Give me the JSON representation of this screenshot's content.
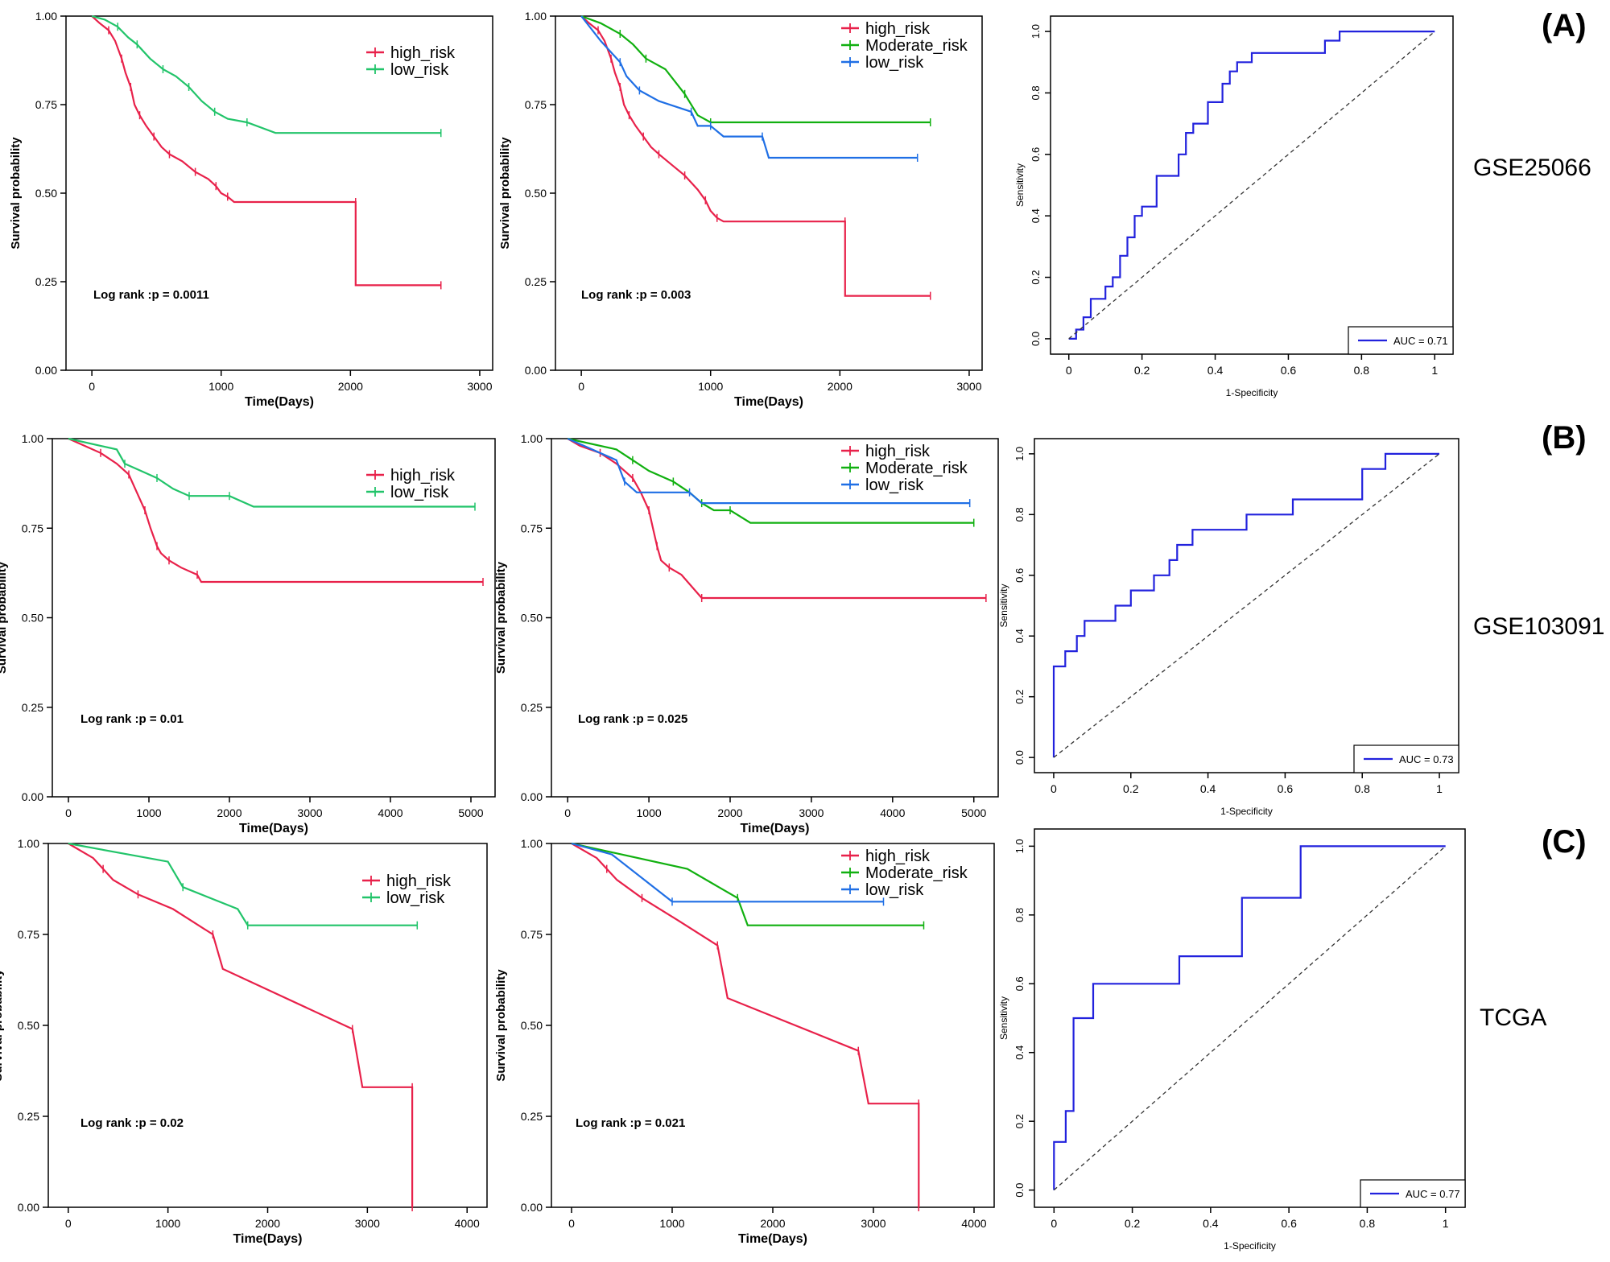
{
  "colors": {
    "high_risk": "#e8214a",
    "low_risk_2grp": "#22c46a",
    "moderate_risk": "#11b010",
    "low_risk_3grp": "#1f6fe5",
    "roc": "#2222dd",
    "axis": "#000000"
  },
  "rows": [
    {
      "letter": "(A)",
      "dataset": "GSE25066"
    },
    {
      "letter": "(B)",
      "dataset": "GSE103091"
    },
    {
      "letter": "(C)",
      "dataset": "TCGA"
    }
  ],
  "chart_data": [
    {
      "type": "line",
      "subtype": "kaplan-meier",
      "title": "",
      "xlabel": "Time(Days)",
      "ylabel": "Survival probability",
      "xlim": [
        -200,
        3100
      ],
      "xticks": [
        0,
        1000,
        2000,
        3000
      ],
      "ylim": [
        0,
        1
      ],
      "yticks": [
        0.0,
        0.25,
        0.5,
        0.75,
        1.0
      ],
      "ytick_labels": [
        "0.00",
        "0.25",
        "0.50",
        "0.75",
        "1.00"
      ],
      "annotation": "Log rank :p = 0.0011",
      "series": [
        {
          "name": "high_risk",
          "color": "#e8214a",
          "x": [
            0,
            60,
            130,
            180,
            230,
            260,
            300,
            330,
            370,
            420,
            480,
            540,
            600,
            700,
            800,
            900,
            960,
            1000,
            1050,
            1100,
            2040,
            2040,
            2700
          ],
          "y": [
            1.0,
            0.98,
            0.96,
            0.93,
            0.88,
            0.84,
            0.8,
            0.75,
            0.72,
            0.69,
            0.66,
            0.63,
            0.61,
            0.59,
            0.56,
            0.54,
            0.52,
            0.5,
            0.49,
            0.475,
            0.475,
            0.24,
            0.24
          ]
        },
        {
          "name": "low_risk",
          "color": "#22c46a",
          "x": [
            0,
            100,
            200,
            280,
            350,
            450,
            550,
            650,
            750,
            850,
            950,
            1050,
            1200,
            1420,
            2700
          ],
          "y": [
            1.0,
            0.99,
            0.97,
            0.94,
            0.92,
            0.88,
            0.85,
            0.83,
            0.8,
            0.76,
            0.73,
            0.71,
            0.7,
            0.67,
            0.67
          ]
        }
      ]
    },
    {
      "type": "line",
      "subtype": "kaplan-meier",
      "title": "",
      "xlabel": "Time(Days)",
      "ylabel": "Survival probability",
      "xlim": [
        -200,
        3100
      ],
      "xticks": [
        0,
        1000,
        2000,
        3000
      ],
      "ylim": [
        0,
        1
      ],
      "yticks": [
        0.0,
        0.25,
        0.5,
        0.75,
        1.0
      ],
      "ytick_labels": [
        "0.00",
        "0.25",
        "0.50",
        "0.75",
        "1.00"
      ],
      "annotation": "Log rank :p = 0.003",
      "series": [
        {
          "name": "high_risk",
          "color": "#e8214a",
          "x": [
            0,
            60,
            130,
            180,
            230,
            260,
            300,
            330,
            370,
            420,
            480,
            540,
            600,
            700,
            800,
            900,
            960,
            1000,
            1050,
            1100,
            2040,
            2040,
            2700
          ],
          "y": [
            1.0,
            0.98,
            0.96,
            0.93,
            0.88,
            0.84,
            0.8,
            0.75,
            0.72,
            0.69,
            0.66,
            0.63,
            0.61,
            0.58,
            0.55,
            0.51,
            0.48,
            0.45,
            0.43,
            0.42,
            0.42,
            0.21,
            0.21
          ]
        },
        {
          "name": "Moderate_risk",
          "color": "#11b010",
          "x": [
            0,
            150,
            300,
            400,
            500,
            650,
            800,
            900,
            1000,
            2700
          ],
          "y": [
            1.0,
            0.98,
            0.95,
            0.92,
            0.88,
            0.85,
            0.78,
            0.72,
            0.7,
            0.7
          ]
        },
        {
          "name": "low_risk",
          "color": "#1f6fe5",
          "x": [
            0,
            150,
            300,
            350,
            450,
            600,
            850,
            900,
            1000,
            1100,
            1400,
            1450,
            2600
          ],
          "y": [
            1.0,
            0.93,
            0.87,
            0.83,
            0.79,
            0.76,
            0.73,
            0.69,
            0.69,
            0.66,
            0.66,
            0.6,
            0.6
          ]
        }
      ]
    },
    {
      "type": "line",
      "subtype": "roc",
      "title": "",
      "xlabel": "1-Specificity",
      "ylabel": "Sensitivity",
      "xlim": [
        -0.05,
        1.05
      ],
      "ylim": [
        -0.05,
        1.05
      ],
      "xticks": [
        0.0,
        0.2,
        0.4,
        0.6,
        0.8,
        1.0
      ],
      "yticks": [
        0.0,
        0.2,
        0.4,
        0.6,
        0.8,
        1.0
      ],
      "ytick_labels": [
        "0.0",
        "0.2",
        "0.4",
        "0.6",
        "0.8",
        "1.0"
      ],
      "legend": "AUC = 0.71",
      "series": [
        {
          "name": "ROC",
          "color": "#2222dd",
          "x": [
            0.0,
            0.02,
            0.02,
            0.04,
            0.04,
            0.06,
            0.06,
            0.1,
            0.1,
            0.12,
            0.12,
            0.14,
            0.14,
            0.16,
            0.16,
            0.18,
            0.18,
            0.2,
            0.2,
            0.24,
            0.24,
            0.3,
            0.3,
            0.32,
            0.32,
            0.34,
            0.34,
            0.38,
            0.38,
            0.42,
            0.42,
            0.44,
            0.44,
            0.46,
            0.46,
            0.5,
            0.5,
            0.7,
            0.7,
            0.74,
            0.74,
            0.84,
            0.84,
            1.0
          ],
          "y": [
            0.0,
            0.0,
            0.03,
            0.03,
            0.07,
            0.07,
            0.13,
            0.13,
            0.17,
            0.17,
            0.2,
            0.2,
            0.27,
            0.27,
            0.33,
            0.33,
            0.4,
            0.4,
            0.43,
            0.43,
            0.53,
            0.53,
            0.6,
            0.6,
            0.67,
            0.67,
            0.7,
            0.7,
            0.77,
            0.77,
            0.83,
            0.83,
            0.87,
            0.87,
            0.9,
            0.9,
            0.93,
            0.93,
            0.97,
            0.97,
            1.0,
            1.0,
            1.0,
            1.0
          ]
        },
        {
          "name": "reference",
          "color": "#333333",
          "x": [
            0,
            1
          ],
          "y": [
            0,
            1
          ]
        }
      ]
    },
    {
      "type": "line",
      "subtype": "kaplan-meier",
      "title": "",
      "xlabel": "Time(Days)",
      "ylabel": "Survival probability",
      "xlim": [
        -200,
        5300
      ],
      "xticks": [
        0,
        1000,
        2000,
        3000,
        4000,
        5000
      ],
      "ylim": [
        0,
        1
      ],
      "yticks": [
        0.0,
        0.25,
        0.5,
        0.75,
        1.0
      ],
      "ytick_labels": [
        "0.00",
        "0.25",
        "0.50",
        "0.75",
        "1.00"
      ],
      "annotation": "Log rank :p = 0.01",
      "series": [
        {
          "name": "high_risk",
          "color": "#e8214a",
          "x": [
            0,
            200,
            400,
            600,
            750,
            850,
            950,
            1020,
            1100,
            1150,
            1250,
            1400,
            1600,
            1650,
            5150
          ],
          "y": [
            1.0,
            0.98,
            0.96,
            0.93,
            0.9,
            0.85,
            0.8,
            0.75,
            0.7,
            0.68,
            0.66,
            0.64,
            0.62,
            0.6,
            0.6
          ]
        },
        {
          "name": "low_risk",
          "color": "#22c46a",
          "x": [
            0,
            600,
            700,
            900,
            1100,
            1300,
            1500,
            1700,
            2000,
            2300,
            5050
          ],
          "y": [
            1.0,
            0.97,
            0.93,
            0.91,
            0.89,
            0.86,
            0.84,
            0.84,
            0.84,
            0.81,
            0.81
          ]
        }
      ]
    },
    {
      "type": "line",
      "subtype": "kaplan-meier",
      "title": "",
      "xlabel": "Time(Days)",
      "ylabel": "Survival probability",
      "xlim": [
        -200,
        5300
      ],
      "xticks": [
        0,
        1000,
        2000,
        3000,
        4000,
        5000
      ],
      "ylim": [
        0,
        1
      ],
      "yticks": [
        0.0,
        0.25,
        0.5,
        0.75,
        1.0
      ],
      "ytick_labels": [
        "0.00",
        "0.25",
        "0.50",
        "0.75",
        "1.00"
      ],
      "annotation": "Log rank :p = 0.025",
      "series": [
        {
          "name": "high_risk",
          "color": "#e8214a",
          "x": [
            0,
            150,
            400,
            600,
            800,
            900,
            1000,
            1050,
            1100,
            1150,
            1250,
            1400,
            1650,
            5150
          ],
          "y": [
            1.0,
            0.98,
            0.96,
            0.93,
            0.89,
            0.85,
            0.8,
            0.75,
            0.7,
            0.66,
            0.64,
            0.62,
            0.555,
            0.555
          ]
        },
        {
          "name": "Moderate_risk",
          "color": "#11b010",
          "x": [
            0,
            600,
            800,
            1000,
            1300,
            1500,
            1650,
            1800,
            2000,
            2250,
            5000
          ],
          "y": [
            1.0,
            0.97,
            0.94,
            0.91,
            0.88,
            0.85,
            0.82,
            0.8,
            0.8,
            0.765,
            0.765
          ]
        },
        {
          "name": "low_risk",
          "color": "#1f6fe5",
          "x": [
            0,
            600,
            700,
            850,
            1500,
            1650,
            4950
          ],
          "y": [
            1.0,
            0.94,
            0.88,
            0.85,
            0.85,
            0.82,
            0.82
          ]
        }
      ]
    },
    {
      "type": "line",
      "subtype": "roc",
      "title": "",
      "xlabel": "1-Specificity",
      "ylabel": "Sensitivity",
      "xlim": [
        -0.05,
        1.05
      ],
      "ylim": [
        -0.05,
        1.05
      ],
      "xticks": [
        0.0,
        0.2,
        0.4,
        0.6,
        0.8,
        1.0
      ],
      "yticks": [
        0.0,
        0.2,
        0.4,
        0.6,
        0.8,
        1.0
      ],
      "ytick_labels": [
        "0.0",
        "0.2",
        "0.4",
        "0.6",
        "0.8",
        "1.0"
      ],
      "legend": "AUC = 0.73",
      "series": [
        {
          "name": "ROC",
          "color": "#2222dd",
          "x": [
            0.0,
            0.0,
            0.03,
            0.03,
            0.06,
            0.06,
            0.08,
            0.08,
            0.16,
            0.16,
            0.2,
            0.2,
            0.26,
            0.26,
            0.3,
            0.3,
            0.32,
            0.32,
            0.36,
            0.36,
            0.5,
            0.5,
            0.62,
            0.62,
            0.8,
            0.8,
            0.86,
            0.86,
            1.0
          ],
          "y": [
            0.0,
            0.3,
            0.3,
            0.35,
            0.35,
            0.4,
            0.4,
            0.45,
            0.45,
            0.5,
            0.5,
            0.55,
            0.55,
            0.6,
            0.6,
            0.65,
            0.65,
            0.7,
            0.7,
            0.75,
            0.75,
            0.8,
            0.8,
            0.85,
            0.85,
            0.95,
            0.95,
            1.0,
            1.0
          ]
        },
        {
          "name": "reference",
          "color": "#333333",
          "x": [
            0,
            1
          ],
          "y": [
            0,
            1
          ]
        }
      ]
    },
    {
      "type": "line",
      "subtype": "kaplan-meier",
      "title": "",
      "xlabel": "Time(Days)",
      "ylabel": "Survival probability",
      "xlim": [
        -200,
        4200
      ],
      "xticks": [
        0,
        1000,
        2000,
        3000,
        4000
      ],
      "ylim": [
        0,
        1
      ],
      "yticks": [
        0.0,
        0.25,
        0.5,
        0.75,
        1.0
      ],
      "ytick_labels": [
        "0.00",
        "0.25",
        "0.50",
        "0.75",
        "1.00"
      ],
      "annotation": "Log rank :p = 0.02",
      "series": [
        {
          "name": "high_risk",
          "color": "#e8214a",
          "x": [
            0,
            250,
            350,
            450,
            700,
            1050,
            1450,
            1550,
            2850,
            2950,
            3450,
            3450
          ],
          "y": [
            1.0,
            0.96,
            0.93,
            0.9,
            0.86,
            0.82,
            0.75,
            0.655,
            0.49,
            0.33,
            0.33,
            0.0
          ]
        },
        {
          "name": "low_risk",
          "color": "#22c46a",
          "x": [
            0,
            1000,
            1150,
            1700,
            1800,
            3500
          ],
          "y": [
            1.0,
            0.95,
            0.88,
            0.82,
            0.775,
            0.775
          ]
        }
      ]
    },
    {
      "type": "line",
      "subtype": "kaplan-meier",
      "title": "",
      "xlabel": "Time(Days)",
      "ylabel": "Survival probability",
      "xlim": [
        -200,
        4200
      ],
      "xticks": [
        0,
        1000,
        2000,
        3000,
        4000
      ],
      "ylim": [
        0,
        1
      ],
      "yticks": [
        0.0,
        0.25,
        0.5,
        0.75,
        1.0
      ],
      "ytick_labels": [
        "0.00",
        "0.25",
        "0.50",
        "0.75",
        "1.00"
      ],
      "annotation": "Log rank :p = 0.021",
      "series": [
        {
          "name": "high_risk",
          "color": "#e8214a",
          "x": [
            0,
            250,
            350,
            450,
            700,
            1050,
            1450,
            1550,
            2850,
            2950,
            3450,
            3450
          ],
          "y": [
            1.0,
            0.96,
            0.93,
            0.9,
            0.85,
            0.79,
            0.72,
            0.575,
            0.43,
            0.285,
            0.285,
            0.0
          ]
        },
        {
          "name": "Moderate_risk",
          "color": "#11b010",
          "x": [
            0,
            1150,
            1650,
            1750,
            3500
          ],
          "y": [
            1.0,
            0.93,
            0.85,
            0.775,
            0.775
          ]
        },
        {
          "name": "low_risk",
          "color": "#1f6fe5",
          "x": [
            0,
            400,
            1000,
            3100
          ],
          "y": [
            1.0,
            0.97,
            0.84,
            0.84
          ]
        }
      ]
    },
    {
      "type": "line",
      "subtype": "roc",
      "title": "",
      "xlabel": "1-Specificity",
      "ylabel": "Sensitivity",
      "xlim": [
        -0.05,
        1.05
      ],
      "ylim": [
        -0.05,
        1.05
      ],
      "xticks": [
        0.0,
        0.2,
        0.4,
        0.6,
        0.8,
        1.0
      ],
      "yticks": [
        0.0,
        0.2,
        0.4,
        0.6,
        0.8,
        1.0
      ],
      "ytick_labels": [
        "0.0",
        "0.2",
        "0.4",
        "0.6",
        "0.8",
        "1.0"
      ],
      "legend": "AUC = 0.77",
      "series": [
        {
          "name": "ROC",
          "color": "#2222dd",
          "x": [
            0.0,
            0.0,
            0.03,
            0.03,
            0.05,
            0.05,
            0.1,
            0.1,
            0.32,
            0.32,
            0.48,
            0.48,
            0.63,
            0.63,
            1.0
          ],
          "y": [
            0.0,
            0.14,
            0.14,
            0.23,
            0.23,
            0.5,
            0.5,
            0.6,
            0.6,
            0.68,
            0.68,
            0.85,
            0.85,
            1.0,
            1.0
          ]
        },
        {
          "name": "reference",
          "color": "#333333",
          "x": [
            0,
            1
          ],
          "y": [
            0,
            1
          ]
        }
      ]
    }
  ]
}
